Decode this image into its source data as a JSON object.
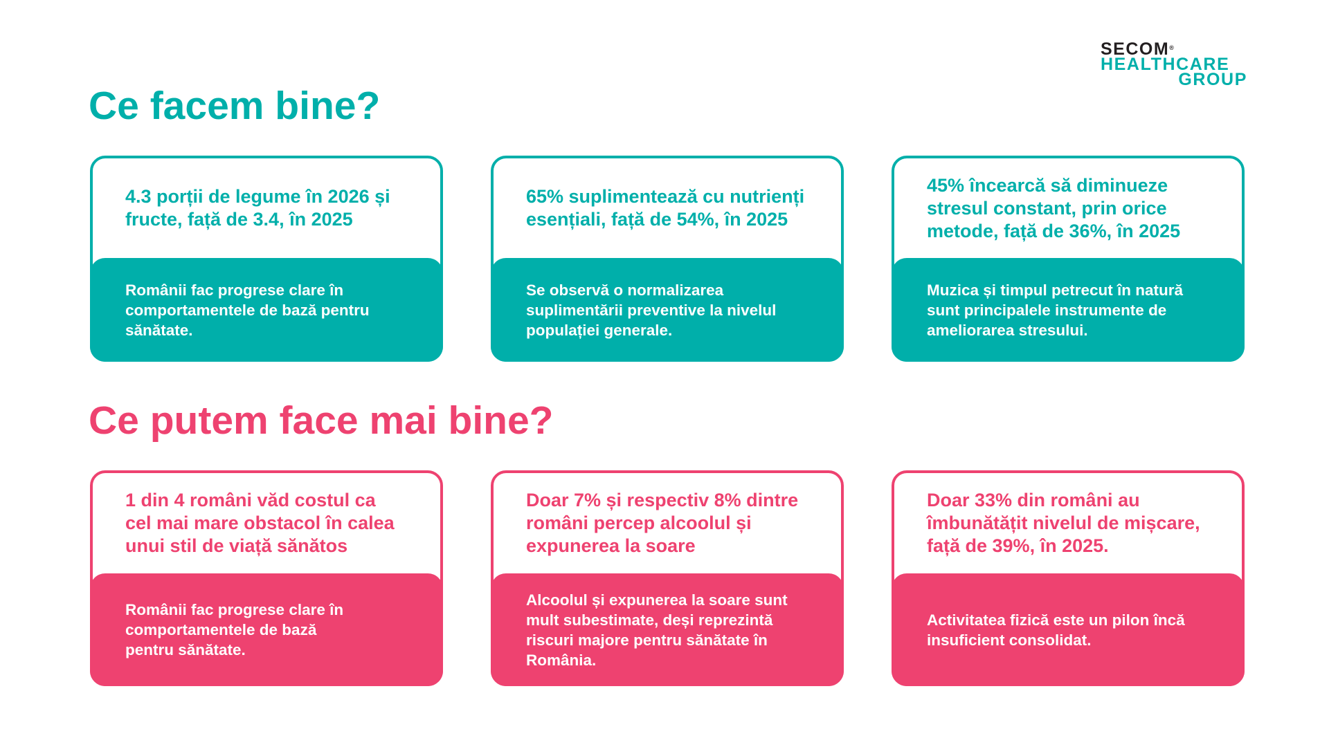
{
  "logo": {
    "line1": "SECOM",
    "registered": "®",
    "line2": "HEALTHCARE",
    "line3": "GROUP"
  },
  "colors": {
    "teal": "#00afaa",
    "pink": "#ee4270"
  },
  "sections": [
    {
      "title": "Ce facem bine?",
      "theme": "teal",
      "cards": [
        {
          "headline": [
            "4.3 porții de legume în 2026 și",
            "fructe, față de 3.4, în 2025"
          ],
          "body": [
            "Românii fac progrese clare în",
            "comportamentele de bază pentru",
            "sănătate."
          ]
        },
        {
          "headline": [
            "65% suplimentează cu nutrienți",
            "esențiali, față de 54%, în 2025"
          ],
          "body": [
            "Se observă o normalizarea",
            "suplimentării preventive la nivelul",
            "populației generale."
          ]
        },
        {
          "headline": [
            "45% încearcă să diminueze",
            "stresul constant, prin orice",
            "metode, față de 36%, în 2025"
          ],
          "body": [
            "Muzica și timpul petrecut în natură",
            "sunt principalele instrumente de",
            "ameliorarea stresului."
          ]
        }
      ]
    },
    {
      "title": "Ce putem face mai bine?",
      "theme": "pink",
      "cards": [
        {
          "headline": [
            "1 din 4 români văd costul ca",
            "cel mai mare obstacol în calea",
            "unui stil de viață sănătos"
          ],
          "body": [
            "Românii fac progrese clare în",
            "comportamentele de bază",
            "pentru sănătate."
          ]
        },
        {
          "headline": [
            "Doar 7% și respectiv 8% dintre",
            "români percep alcoolul și",
            "expunerea la soare"
          ],
          "body": [
            "Alcoolul și expunerea la soare sunt",
            "mult subestimate, deși reprezintă",
            "riscuri majore pentru sănătate în",
            "România."
          ]
        },
        {
          "headline": [
            "Doar 33% din români au",
            "îmbunătățit nivelul de mișcare,",
            "față de 39%, în 2025."
          ],
          "body": [
            "Activitatea fizică este un pilon încă",
            "insuficient consolidat."
          ]
        }
      ]
    }
  ]
}
